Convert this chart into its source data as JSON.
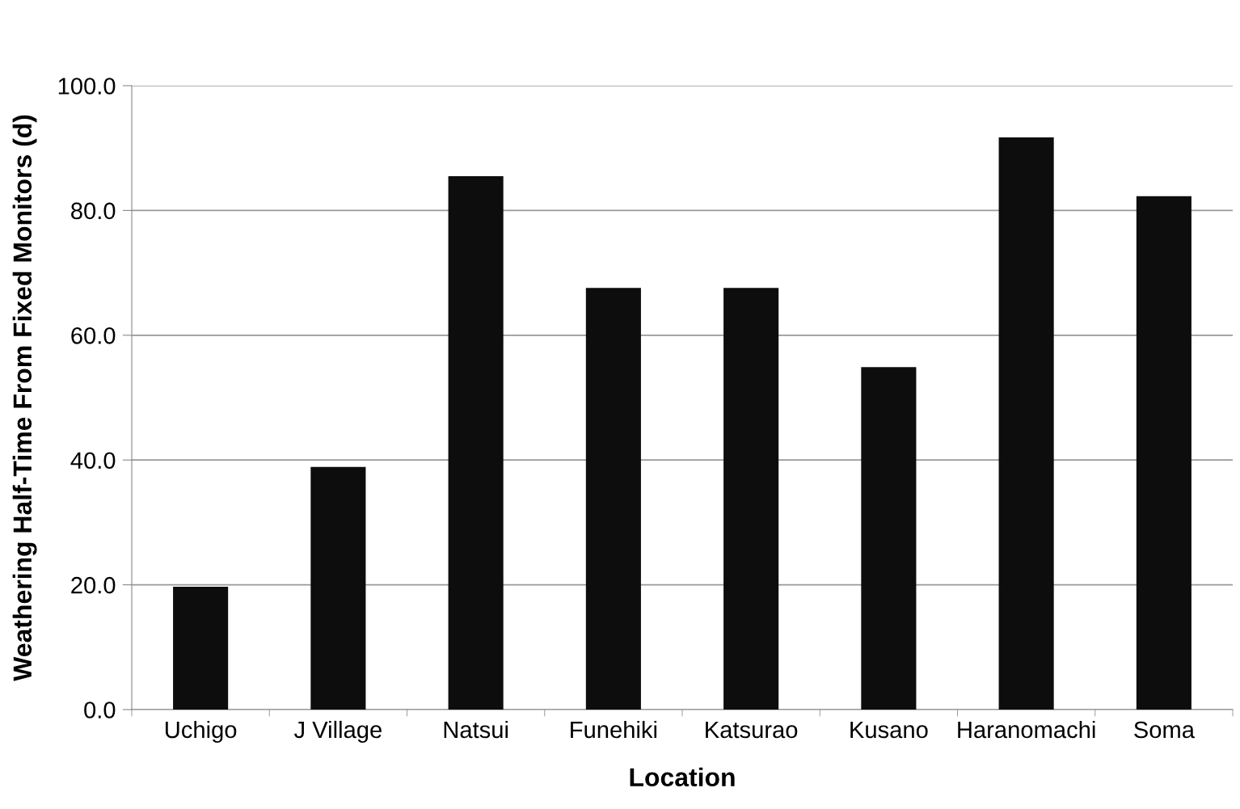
{
  "chart_data": {
    "type": "bar",
    "xlabel": "Location",
    "ylabel": "Weathering Half-Time From Fixed Monitors (d)",
    "categories": [
      "Uchigo",
      "J Village",
      "Natsui",
      "Funehiki",
      "Katsurao",
      "Kusano",
      "Haranomachi",
      "Soma"
    ],
    "values": [
      19.7,
      38.9,
      85.5,
      67.6,
      67.6,
      54.9,
      91.7,
      82.3
    ],
    "color": "#0d0d0d",
    "ylim": [
      0,
      100
    ],
    "yticks": [
      {
        "value": 0,
        "label": "0.0"
      },
      {
        "value": 20,
        "label": "20.0"
      },
      {
        "value": 40,
        "label": "40.0"
      },
      {
        "value": 60,
        "label": "60.0"
      },
      {
        "value": 80,
        "label": "80.0"
      },
      {
        "value": 100,
        "label": "100.0"
      }
    ],
    "grid": "y"
  }
}
